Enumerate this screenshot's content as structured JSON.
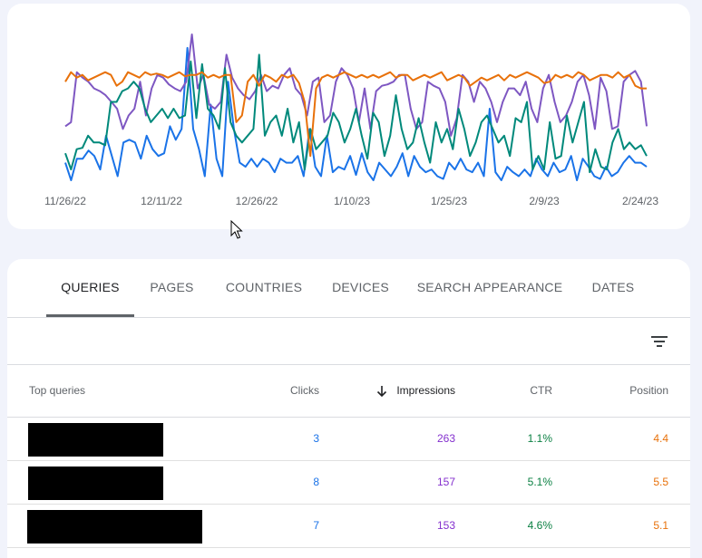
{
  "chart_data": {
    "type": "line",
    "x_ticks": [
      "11/26/22",
      "12/11/22",
      "12/26/22",
      "1/10/23",
      "1/25/23",
      "2/9/23",
      "2/24/23"
    ],
    "grid": false,
    "series": [
      {
        "metric": "clicks",
        "color": "#1a73e8",
        "values": [
          15,
          2,
          18,
          18,
          24,
          20,
          10,
          35,
          20,
          5,
          30,
          32,
          30,
          18,
          35,
          25,
          20,
          22,
          42,
          32,
          40,
          100,
          40,
          25,
          5,
          58,
          18,
          5,
          75,
          40,
          15,
          12,
          18,
          12,
          18,
          15,
          8,
          18,
          15,
          15,
          20,
          5,
          40,
          12,
          5,
          35,
          8,
          12,
          10,
          20,
          6,
          22,
          8,
          2,
          15,
          10,
          5,
          12,
          22,
          5,
          20,
          12,
          8,
          10,
          5,
          3,
          15,
          10,
          18,
          10,
          8,
          15,
          5,
          55,
          8,
          2,
          12,
          8,
          5,
          10,
          5,
          18,
          10,
          5,
          15,
          8,
          10,
          20,
          2,
          18,
          12,
          5,
          3,
          12,
          5,
          8,
          15,
          20,
          15,
          15,
          12
        ]
      },
      {
        "metric": "impressions",
        "color": "#7e57c2",
        "values": [
          42,
          45,
          82,
          78,
          75,
          70,
          68,
          65,
          60,
          55,
          40,
          50,
          55,
          75,
          50,
          70,
          80,
          78,
          73,
          70,
          68,
          75,
          110,
          70,
          80,
          58,
          55,
          60,
          95,
          78,
          70,
          65,
          62,
          68,
          80,
          68,
          72,
          70,
          80,
          85,
          70,
          65,
          50,
          75,
          78,
          45,
          50,
          75,
          85,
          80,
          70,
          45,
          70,
          40,
          68,
          72,
          73,
          75,
          80,
          80,
          55,
          40,
          45,
          75,
          72,
          70,
          60,
          35,
          48,
          80,
          75,
          60,
          75,
          70,
          60,
          45,
          60,
          70,
          70,
          65,
          75,
          55,
          45,
          70,
          80,
          60,
          45,
          50,
          60,
          75,
          80,
          65,
          40,
          78,
          68,
          40,
          42,
          75,
          80,
          83,
          75,
          42
        ]
      },
      {
        "metric": "ctr",
        "color": "#00897b",
        "values": [
          22,
          10,
          25,
          26,
          35,
          30,
          30,
          28,
          60,
          60,
          68,
          70,
          75,
          70,
          55,
          45,
          50,
          55,
          48,
          55,
          48,
          50,
          90,
          48,
          88,
          55,
          50,
          40,
          85,
          45,
          35,
          30,
          35,
          40,
          95,
          35,
          45,
          50,
          35,
          55,
          30,
          45,
          10,
          40,
          25,
          30,
          35,
          52,
          45,
          30,
          40,
          55,
          35,
          18,
          52,
          45,
          20,
          35,
          65,
          40,
          25,
          30,
          48,
          30,
          15,
          45,
          30,
          40,
          25,
          55,
          40,
          20,
          30,
          45,
          50,
          40,
          30,
          35,
          20,
          48,
          45,
          60,
          10,
          20,
          10,
          45,
          18,
          20,
          50,
          30,
          45,
          60,
          8,
          25,
          12,
          10,
          30,
          40,
          25,
          30,
          25,
          28,
          20
        ]
      },
      {
        "metric": "position",
        "color": "#e8710a",
        "values": [
          75,
          82,
          78,
          80,
          76,
          78,
          80,
          82,
          80,
          72,
          75,
          82,
          80,
          78,
          82,
          80,
          81,
          80,
          78,
          80,
          82,
          79,
          80,
          80,
          82,
          78,
          80,
          78,
          80,
          80,
          45,
          50,
          75,
          80,
          72,
          80,
          78,
          75,
          80,
          78,
          80,
          74,
          60,
          20,
          70,
          78,
          80,
          78,
          80,
          82,
          80,
          78,
          80,
          78,
          80,
          78,
          80,
          82,
          78,
          80,
          80,
          76,
          78,
          80,
          78,
          80,
          82,
          76,
          78,
          80,
          78,
          72,
          75,
          78,
          76,
          78,
          80,
          76,
          80,
          78,
          80,
          82,
          80,
          78,
          74,
          75,
          80,
          78,
          80,
          78,
          82,
          80,
          76,
          78,
          80,
          80,
          78,
          82,
          78,
          80,
          72,
          70,
          70
        ]
      }
    ]
  },
  "tabs": [
    {
      "label": "QUERIES",
      "active": true
    },
    {
      "label": "PAGES"
    },
    {
      "label": "COUNTRIES"
    },
    {
      "label": "DEVICES"
    },
    {
      "label": "SEARCH APPEARANCE"
    },
    {
      "label": "DATES"
    }
  ],
  "filter_icon": "filter-list-icon",
  "table": {
    "headers": {
      "query": "Top queries",
      "clicks": "Clicks",
      "impressions": "Impressions",
      "ctr": "CTR",
      "position": "Position"
    },
    "sort_icon": "arrow-downward-icon",
    "sorted_by": "impressions",
    "colors": {
      "clicks": "#1a73e8",
      "impressions": "#8430ce",
      "ctr": "#0b8043",
      "position": "#e8710a"
    },
    "rows": [
      {
        "query": "[redacted]",
        "clicks": "3",
        "impressions": "263",
        "ctr": "1.1%",
        "position": "4.4"
      },
      {
        "query": "[redacted]",
        "clicks": "8",
        "impressions": "157",
        "ctr": "5.1%",
        "position": "5.5"
      },
      {
        "query": "[redacted]",
        "clicks": "7",
        "impressions": "153",
        "ctr": "4.6%",
        "position": "5.1"
      }
    ]
  }
}
